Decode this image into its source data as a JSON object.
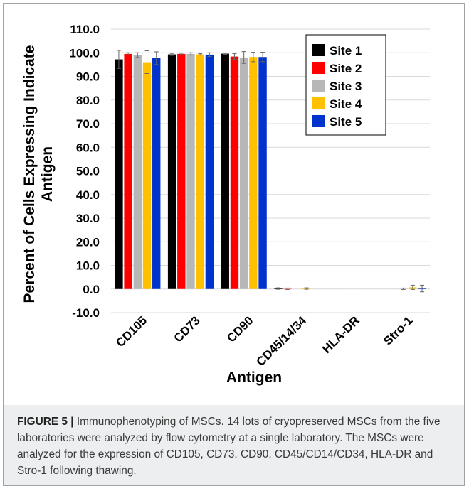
{
  "chart_data": {
    "type": "bar",
    "categories": [
      "CD105",
      "CD73",
      "CD90",
      "CD45/14/34",
      "HLA-DR",
      "Stro-1"
    ],
    "series": [
      {
        "name": "Site 1",
        "color": "#000000",
        "values": [
          97.2,
          99.3,
          99.6,
          0.2,
          0.0,
          0.0
        ],
        "errors": [
          3.8,
          0.4,
          0.3,
          0.3,
          0.0,
          0.0
        ]
      },
      {
        "name": "Site 2",
        "color": "#ff0000",
        "values": [
          99.5,
          99.5,
          98.4,
          0.1,
          0.0,
          0.0
        ],
        "errors": [
          0.5,
          0.3,
          1.2,
          0.3,
          0.0,
          0.0
        ]
      },
      {
        "name": "Site 3",
        "color": "#b7b7b7",
        "values": [
          99.0,
          99.5,
          98.0,
          0.0,
          0.0,
          0.1
        ],
        "errors": [
          1.0,
          0.5,
          2.5,
          0.0,
          0.0,
          0.3
        ]
      },
      {
        "name": "Site 4",
        "color": "#ffc000",
        "values": [
          96.0,
          99.3,
          98.2,
          0.2,
          0.0,
          0.7
        ],
        "errors": [
          4.8,
          0.3,
          2.0,
          0.3,
          0.0,
          0.9
        ]
      },
      {
        "name": "Site 5",
        "color": "#0033cc",
        "values": [
          97.7,
          99.2,
          98.2,
          0.0,
          0.0,
          0.2
        ],
        "errors": [
          2.7,
          0.8,
          2.0,
          0.0,
          0.0,
          1.4
        ]
      }
    ],
    "yticks": [
      "110.0",
      "100.0",
      "90.0",
      "80.0",
      "70.0",
      "60.0",
      "50.0",
      "40.0",
      "30.0",
      "20.0",
      "10.0",
      "0.0",
      "-10.0"
    ],
    "ylim": [
      -10,
      110
    ],
    "xlabel": "Antigen",
    "ylabel": [
      "Percent of Cells Expressing Indicate",
      "Antigen"
    ],
    "grid": true,
    "legend_position": "top-right"
  },
  "caption": {
    "lead": "FIGURE 5 |",
    "text": " Immunophenotyping of MSCs. 14 lots of cryopreserved MSCs from the five laboratories were analyzed by flow cytometry at a single laboratory. The MSCs were analyzed for the expression of CD105, CD73, CD90, CD45/CD14/CD34, HLA-DR and Stro-1 following thawing."
  }
}
